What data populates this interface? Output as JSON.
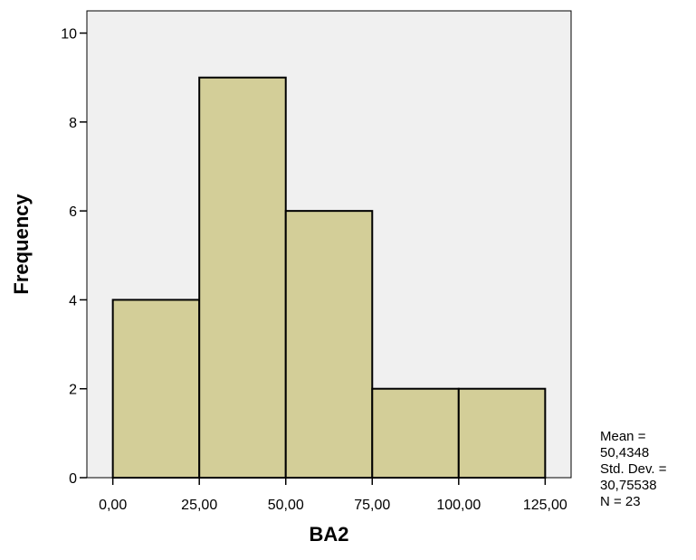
{
  "chart_data": {
    "type": "bar",
    "title": "",
    "xlabel": "BA2",
    "ylabel": "Frequency",
    "bins": [
      {
        "from": 0,
        "to": 25,
        "count": 4
      },
      {
        "from": 25,
        "to": 50,
        "count": 9
      },
      {
        "from": 50,
        "to": 75,
        "count": 6
      },
      {
        "from": 75,
        "to": 100,
        "count": 2
      },
      {
        "from": 100,
        "to": 125,
        "count": 2
      }
    ],
    "x_ticks": [
      {
        "value": 0,
        "label": "0,00"
      },
      {
        "value": 25,
        "label": "25,00"
      },
      {
        "value": 50,
        "label": "50,00"
      },
      {
        "value": 75,
        "label": "75,00"
      },
      {
        "value": 100,
        "label": "100,00"
      },
      {
        "value": 125,
        "label": "125,00"
      }
    ],
    "y_ticks": [
      {
        "value": 0,
        "label": "0"
      },
      {
        "value": 2,
        "label": "2"
      },
      {
        "value": 4,
        "label": "4"
      },
      {
        "value": 6,
        "label": "6"
      },
      {
        "value": 8,
        "label": "8"
      },
      {
        "value": 10,
        "label": "10"
      }
    ],
    "xlim": [
      -7.5,
      132.5
    ],
    "ylim": [
      0,
      10.5
    ],
    "colors": {
      "bar_fill": "#d3ce98",
      "plot_background": "#f0f0f0",
      "outline": "#000000"
    },
    "stats": [
      "Mean =",
      "50,4348",
      "Std. Dev. =",
      "30,75538",
      "N = 23"
    ]
  }
}
